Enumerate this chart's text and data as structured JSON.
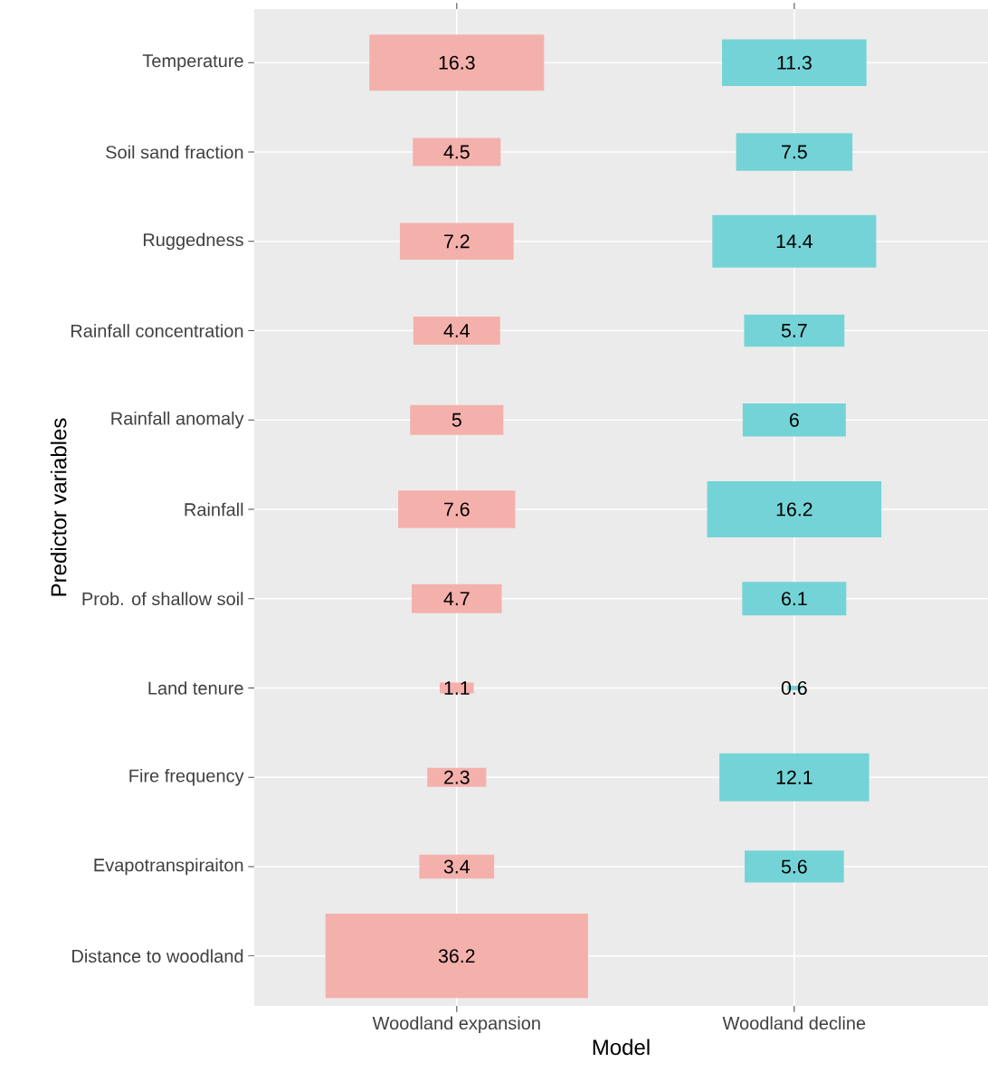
{
  "chart_data": {
    "type": "heatmap",
    "xlabel": "Model",
    "ylabel": "Predictor variables",
    "categories": [
      "Woodland expansion",
      "Woodland decline"
    ],
    "y_categories": [
      "Temperature",
      "Soil sand fraction",
      "Ruggedness",
      "Rainfall concentration",
      "Rainfall anomaly",
      "Rainfall",
      "Prob. of shallow soil",
      "Land tenure",
      "Fire frequency",
      "Evapotranspiraiton",
      "Distance to woodland"
    ],
    "cells": [
      [
        16.3,
        11.3
      ],
      [
        4.5,
        7.5
      ],
      [
        7.2,
        14.4
      ],
      [
        4.4,
        5.7
      ],
      [
        5,
        6
      ],
      [
        7.6,
        16.2
      ],
      [
        4.7,
        6.1
      ],
      [
        1.1,
        0.6
      ],
      [
        2.3,
        12.1
      ],
      [
        3.4,
        5.6
      ],
      [
        36.2,
        null
      ]
    ],
    "colors": [
      "#f4b0ab",
      "#74d3d6"
    ],
    "data_labels": true,
    "grid": true
  }
}
